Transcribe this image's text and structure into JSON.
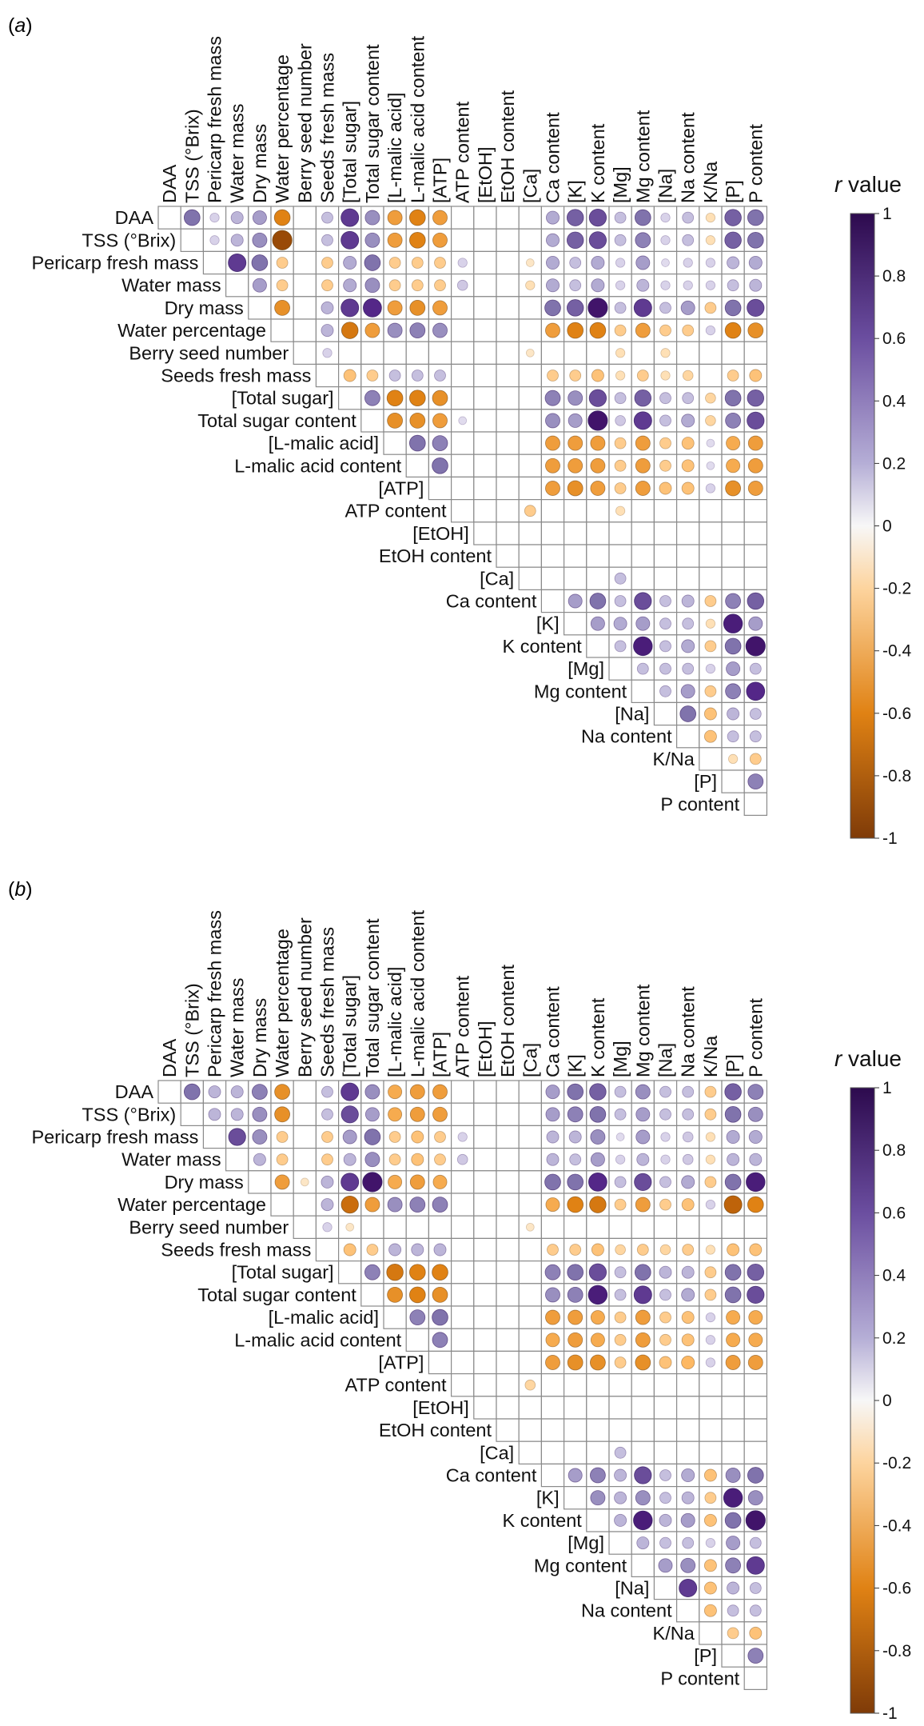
{
  "chart_data": [
    {
      "type": "heatmap",
      "panel_label": "a",
      "variables": [
        "DAA",
        "TSS (°Brix)",
        "Pericarp fresh mass",
        "Water mass",
        "Dry mass",
        "Water percentage",
        "Berry seed number",
        "Seeds fresh mass",
        "[Total sugar]",
        "Total sugar content",
        "[L-malic acid]",
        "L-malic acid content",
        "[ATP]",
        "ATP content",
        "[EtOH]",
        "EtOH content",
        "[Ca]",
        "Ca content",
        "[K]",
        "K content",
        "[Mg]",
        "Mg content",
        "[Na]",
        "Na content",
        "K/Na",
        "[P]",
        "P content"
      ],
      "matrix_rows": [
        "     0.6  0.2  0.35 0.45 -0.6 0    0.3  0.75 0.5  -0.5 -0.6 -0.5 0    0    0    0    0.4  0.65 0.7  0.3  0.6  0.2  0.3  -0.2 0.65 0.6",
        "          0.2  0.35 0.5  -0.9 0    0.3  0.75 0.5  -0.5 -0.6 -0.5 0    0    0    0    0.4  0.65 0.7  0.3  0.55 0.2  0.3  -0.2 0.65 0.6",
        "               0.75 0.6  -0.3 0    -0.3 0.4  0.6  -0.3 -0.3 -0.3 0.2  0    0    -0.15 0.4 0.3  0.4  0.2  0.45 0.15 0.2  0.2  0.35 0.4",
        "                    0.45 -0.3 0    -0.3 0.4  0.5  -0.3 -0.3 -0.3 0.25 0    0    -0.2 0.4  0.3  0.4  0.2  0.35 0.2  0.2  0.2  0.3  0.35",
        "                         -0.55 0   0.35 0.75 0.8  -0.5 -0.55 -0.5 0   0    0    0    0.6  0.65 0.9  0.3  0.75 0.3  0.45 -0.3 0.6  0.7",
        "                               0   0.35 -0.65 -0.5 0.5  0.55 0.5  0    0    0    0    -0.5 -0.6 -0.6 -0.3 -0.5 -0.3 -0.3 0.2  -0.6 -0.55",
        "                                   0.2  0    0    0    0    0    0    0    0    -0.15 0    0    0    -0.2 0    -0.2 0    0    0    0",
        "                                        -0.35 -0.3 0.3 0.3  0.3  0    0    0    0    -0.3 -0.3 -0.35 -0.2 -0.3 -0.2 -0.25 0  -0.3 -0.35",
        "                                              0.55 -0.6 -0.6 -0.55 0  0    0    0    0.55 0.5  0.7  0.3  0.65 0.3  0.3  -0.25 0.6 0.65",
        "                                                   -0.55 -0.55 -0.5 0.15 0  0    0    0.5  0.45 0.9  0.25 0.75 0.3  0.4  -0.25 0.55 0.7",
        "                                                         0.6  0.55 0    0    0    0    -0.5 -0.5 -0.5 -0.3 -0.5 -0.3 -0.35 0.15 -0.45 -0.5",
        "                                                              0.6  0    0    0    0    -0.5 -0.5 -0.5 -0.3 -0.5 -0.3 -0.35 0.15 -0.45 -0.5",
        "                                                                   0    0    0    0    -0.5 -0.55 -0.5 -0.3 -0.5 -0.35 -0.35 0.2 -0.55 -0.5",
        "                                                                        0    0    -0.3 0    0    0    -0.2 0    0    0    0    0    0",
        "                                                                             0    0    0    0    0    0    0    0    0    0    0    0",
        "                                                                                  0    0    0    0    0    0    0    0    0    0    0",
        "                                                                                       0    0    0    0.3  0    0    0    0    0    0",
        "                                                                                            0.45 0.6  0.3  0.7  0.3  0.35 -0.3 0.55 0.65",
        "                                                                                                 0.45 0.4  0.45 0.3  0.3  -0.2 0.85 0.45",
        "                                                                                                      0.3  0.85 0.3  0.4  -0.3 0.6  0.9",
        "                                                                                                           0.3  0.3  0.3  0.2  0.45 0.3",
        "                                                                                                                0.3  0.45 -0.3 0.55 0.8",
        "                                                                                                                     0.6  -0.35 0.35 0.3",
        "                                                                                                                          -0.35 0.3 0.3",
        "                                                                                                                                -0.2 -0.3",
        "                                                                                                                                     0.55",
        ""
      ],
      "colorbar": {
        "title_italic": "r",
        "title_rest": " value",
        "ticks": [
          "1",
          "0.8",
          "0.6",
          "0.4",
          "0.2",
          "0",
          "-0.2",
          "-0.4",
          "-0.6",
          "-0.8",
          "-1"
        ],
        "range": [
          -1,
          1
        ]
      }
    },
    {
      "type": "heatmap",
      "panel_label": "b",
      "variables": [
        "DAA",
        "TSS (°Brix)",
        "Pericarp fresh mass",
        "Water mass",
        "Dry mass",
        "Water percentage",
        "Berry seed number",
        "Seeds fresh mass",
        "[Total sugar]",
        "Total sugar content",
        "[L-malic acid]",
        "L-malic acid content",
        "[ATP]",
        "ATP content",
        "[EtOH]",
        "EtOH content",
        "[Ca]",
        "Ca content",
        "[K]",
        "K content",
        "[Mg]",
        "Mg content",
        "[Na]",
        "Na content",
        "K/Na",
        "[P]",
        "P content"
      ],
      "matrix_rows": [
        "     0.6  0.35 0.35 0.55 -0.55 0   0.3  0.75 0.5  -0.45 -0.5 -0.5 0   0    0    0    0.45 0.6  0.65 0.3  0.5  0.3  0.3  -0.3 0.65 0.55",
        "          0.35 0.35 0.5  -0.55 0   0.3  0.7  0.45 -0.45 -0.5 -0.5 0   0    0    0    0.45 0.55 0.6  0.3  0.45 0.3  0.3  -0.3 0.6  0.5",
        "               0.7  0.5  -0.3 0    -0.3 0.45 0.6  -0.3 -0.35 -0.3 0.2 0    0    0    0.35 0.35 0.5  0.15 0.45 0.2  0.25 -0.2 0.4  0.4",
        "                    0.35 -0.3 0    -0.3 0.35 0.5  -0.3 -0.35 -0.3 0.25 0   0    0    0.35 0.3  0.45 0.2  0.35 0.2  0.25 -0.2 0.35 0.35",
        "                         -0.5 -0.15 0.35 0.75 0.9 -0.45 -0.5 -0.45 0  0    0    0    0.6  0.6  0.8  0.3  0.7  0.3  0.4  -0.3 0.6  0.85",
        "                              0    0.35 -0.7 -0.5 0.5 0.55 0.55 0    0    0    0    -0.45 -0.6 -0.65 -0.3 -0.5 -0.3 -0.35 0.2 -0.75 -0.6",
        "                                   0.2  -0.15 0   0    0    0    0    0    0    -0.15 0   0    0    0    0    0    0    0    0",
        "                                        -0.35 -0.3 0.35 0.35 0.35 0  0    0    0    -0.3 -0.3 -0.35 -0.25 -0.3 -0.25 -0.3 -0.2 -0.35 -0.35",
        "                                              0.55 -0.65 -0.6 -0.6 0  0    0    0    0.55 0.6  0.7  0.3  0.6  0.35 0.35 -0.3 0.6  0.65",
        "                                                   -0.55 -0.6 -0.55 0 0    0    0    0.5  0.55 0.85 0.3  0.75 0.3  0.4  -0.3 0.6  0.7",
        "                                                         0.55 0.6  0    0    0    0    -0.5 -0.5 -0.45 -0.3 -0.5 -0.3 -0.35 0.2 -0.45 -0.45",
        "                                                              0.55 0    0    0    0    -0.45 -0.5 -0.45 -0.3 -0.5 -0.3 -0.35 0.2 -0.45 -0.45",
        "                                                                   0    0    0    0    -0.5 -0.55 -0.55 -0.3 -0.55 -0.35 -0.4 0.2 -0.5 -0.5",
        "                                                                        0    0    -0.25 0   0    0    0    0    0    0    0    0    0",
        "                                                                             0    0    0    0    0    0    0    0    0    0    0    0",
        "                                                                                  0    0    0    0    0    0    0    0    0    0    0",
        "                                                                                       0    0    0    0.3  0    0    0    0    0    0",
        "                                                                                            0.45 0.55 0.35 0.7  0.3  0.4  -0.35 0.5 0.6",
        "                                                                                                 0.5  0.35 0.5  0.3  0.35 -0.3 0.85 0.5",
        "                                                                                                      0.35 0.85 0.35 0.45 -0.35 0.6 0.9",
        "                                                                                                           0.35 0.3  0.3  0.2  0.45 0.3",
        "                                                                                                                0.45 0.5 -0.35 0.55 0.75",
        "                                                                                                                     0.75 -0.35 0.35 0.3",
        "                                                                                                                          -0.35 0.3 0.3",
        "                                                                                                                                -0.3 -0.35",
        "                                                                                                                                     0.55",
        ""
      ],
      "colorbar": {
        "title_italic": "r",
        "title_rest": " value",
        "ticks": [
          "1",
          "0.8",
          "0.6",
          "0.4",
          "0.2",
          "0",
          "-0.2",
          "-0.4",
          "-0.6",
          "-0.8",
          "-1"
        ],
        "range": [
          -1,
          1
        ]
      }
    }
  ]
}
